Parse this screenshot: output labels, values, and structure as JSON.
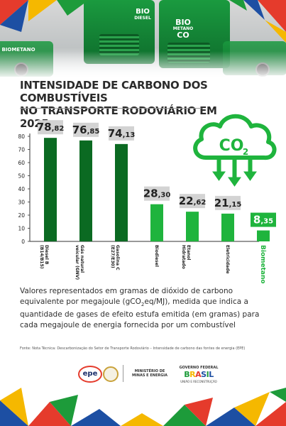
{
  "hero": {
    "truck_label_1_line1": "BIO",
    "truck_label_1_line2": "DIESEL",
    "truck_label_2_line1": "BIO",
    "truck_label_2_line2": "METANO",
    "truck_label_2_line3": "CO",
    "truck_label_3": "BIOMETANO"
  },
  "title": {
    "line1": "INTENSIDADE DE CARBONO DOS COMBUSTÍVEIS",
    "line2": "NO TRANSPORTE RODOVIÁRIO EM 2025"
  },
  "icon": {
    "name": "co2-cloud-icon",
    "text": "CO",
    "sub": "2"
  },
  "colors": {
    "dark_green": "#0b6a22",
    "mid_green": "#17a53a",
    "bright_green": "#1fb43d",
    "label_gray": "#d3d3d3",
    "axis_text": "#222222"
  },
  "chart_data": {
    "type": "bar",
    "categories": [
      "Diesel B\n(B14/B15)",
      "Gás natural\nveicular (GNV)",
      "Gasolina C\n(E27/E30)",
      "Biodiesel",
      "Etanol\nHidratado",
      "Eletricidade",
      "Biometano"
    ],
    "values": [
      78.82,
      76.85,
      74.13,
      28.3,
      22.62,
      21.15,
      8.35
    ],
    "value_labels_int": [
      "78",
      "76",
      "74",
      "28",
      "22",
      "21",
      "8"
    ],
    "value_labels_dec": [
      ",82",
      ",85",
      ",13",
      ",30",
      ",62",
      ",15",
      ",35"
    ],
    "bar_colors": [
      "#0b6a22",
      "#0b6a22",
      "#0b6a22",
      "#1fb43d",
      "#1fb43d",
      "#1fb43d",
      "#1fb43d"
    ],
    "highlight_index": 6,
    "yticks": [
      0,
      10,
      20,
      30,
      40,
      50,
      60,
      70,
      80
    ],
    "ylim": [
      0,
      80
    ],
    "grid": false,
    "title": "INTENSIDADE DE CARBONO DOS COMBUSTÍVEIS NO TRANSPORTE RODOVIÁRIO EM 2025",
    "xlabel": "",
    "ylabel": ""
  },
  "note": {
    "text_before": "Valores representados em gramas de dióxido de carbono equivalente por megajoule (gCO",
    "sub": "2",
    "text_after": "eq/MJ), medida que indica a quantidade de gases de efeito estufa emitida (em gramas) para cada megajoule de energia fornecida por um combustível"
  },
  "source": "Fonte: Nota Técnica: Descarbonização do Setor de Transporte Rodoviário – Intensidade de carbono das fontes de energia (EPE)",
  "logos": {
    "epe": "epe",
    "ministerio_line1": "MINISTÉRIO DE",
    "ministerio_line2": "MINAS E ENERGIA",
    "gov_line": "GOVERNO FEDERAL",
    "brasil": [
      "B",
      "R",
      "A",
      "S",
      "I",
      "L"
    ],
    "uniao": "UNIÃO E RECONSTRUÇÃO"
  }
}
